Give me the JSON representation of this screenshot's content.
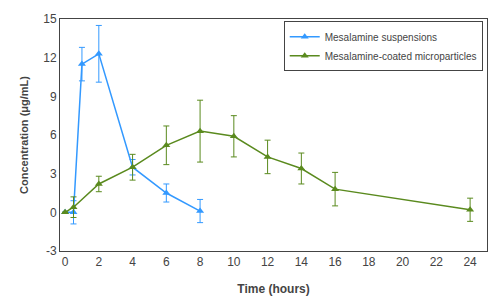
{
  "chart_data": {
    "type": "line",
    "xlabel": "Time (hours)",
    "ylabel": "Concentration (μg/mL)",
    "marker": "triangle-up",
    "series": [
      {
        "name": "Mesalamine suspensions",
        "color": "#3399ff",
        "x": [
          0,
          0.5,
          1,
          2,
          4,
          6,
          8
        ],
        "values": [
          0,
          0.0,
          11.5,
          12.3,
          3.5,
          1.5,
          0.1
        ],
        "errors": [
          0,
          0.9,
          1.3,
          2.2,
          0.6,
          0.7,
          0.9
        ]
      },
      {
        "name": "Mesalamine-coated microparticles",
        "color": "#5a8a1e",
        "x": [
          0,
          0.5,
          2,
          4,
          6,
          8,
          10,
          12,
          14,
          16,
          24
        ],
        "values": [
          0,
          0.4,
          2.2,
          3.5,
          5.2,
          6.3,
          5.9,
          4.3,
          3.4,
          1.8,
          0.2
        ],
        "errors": [
          0,
          0.8,
          0.6,
          1.0,
          1.5,
          2.4,
          1.6,
          1.3,
          1.2,
          1.3,
          0.9
        ]
      }
    ],
    "xlim": [
      -0.3,
      25
    ],
    "ylim": [
      -3,
      15
    ],
    "xticks": [
      0,
      2,
      4,
      6,
      8,
      10,
      12,
      14,
      16,
      18,
      20,
      22,
      24
    ],
    "yticks": [
      -3,
      0,
      3,
      6,
      9,
      12,
      15
    ],
    "grid": false,
    "legend": "upper right"
  }
}
